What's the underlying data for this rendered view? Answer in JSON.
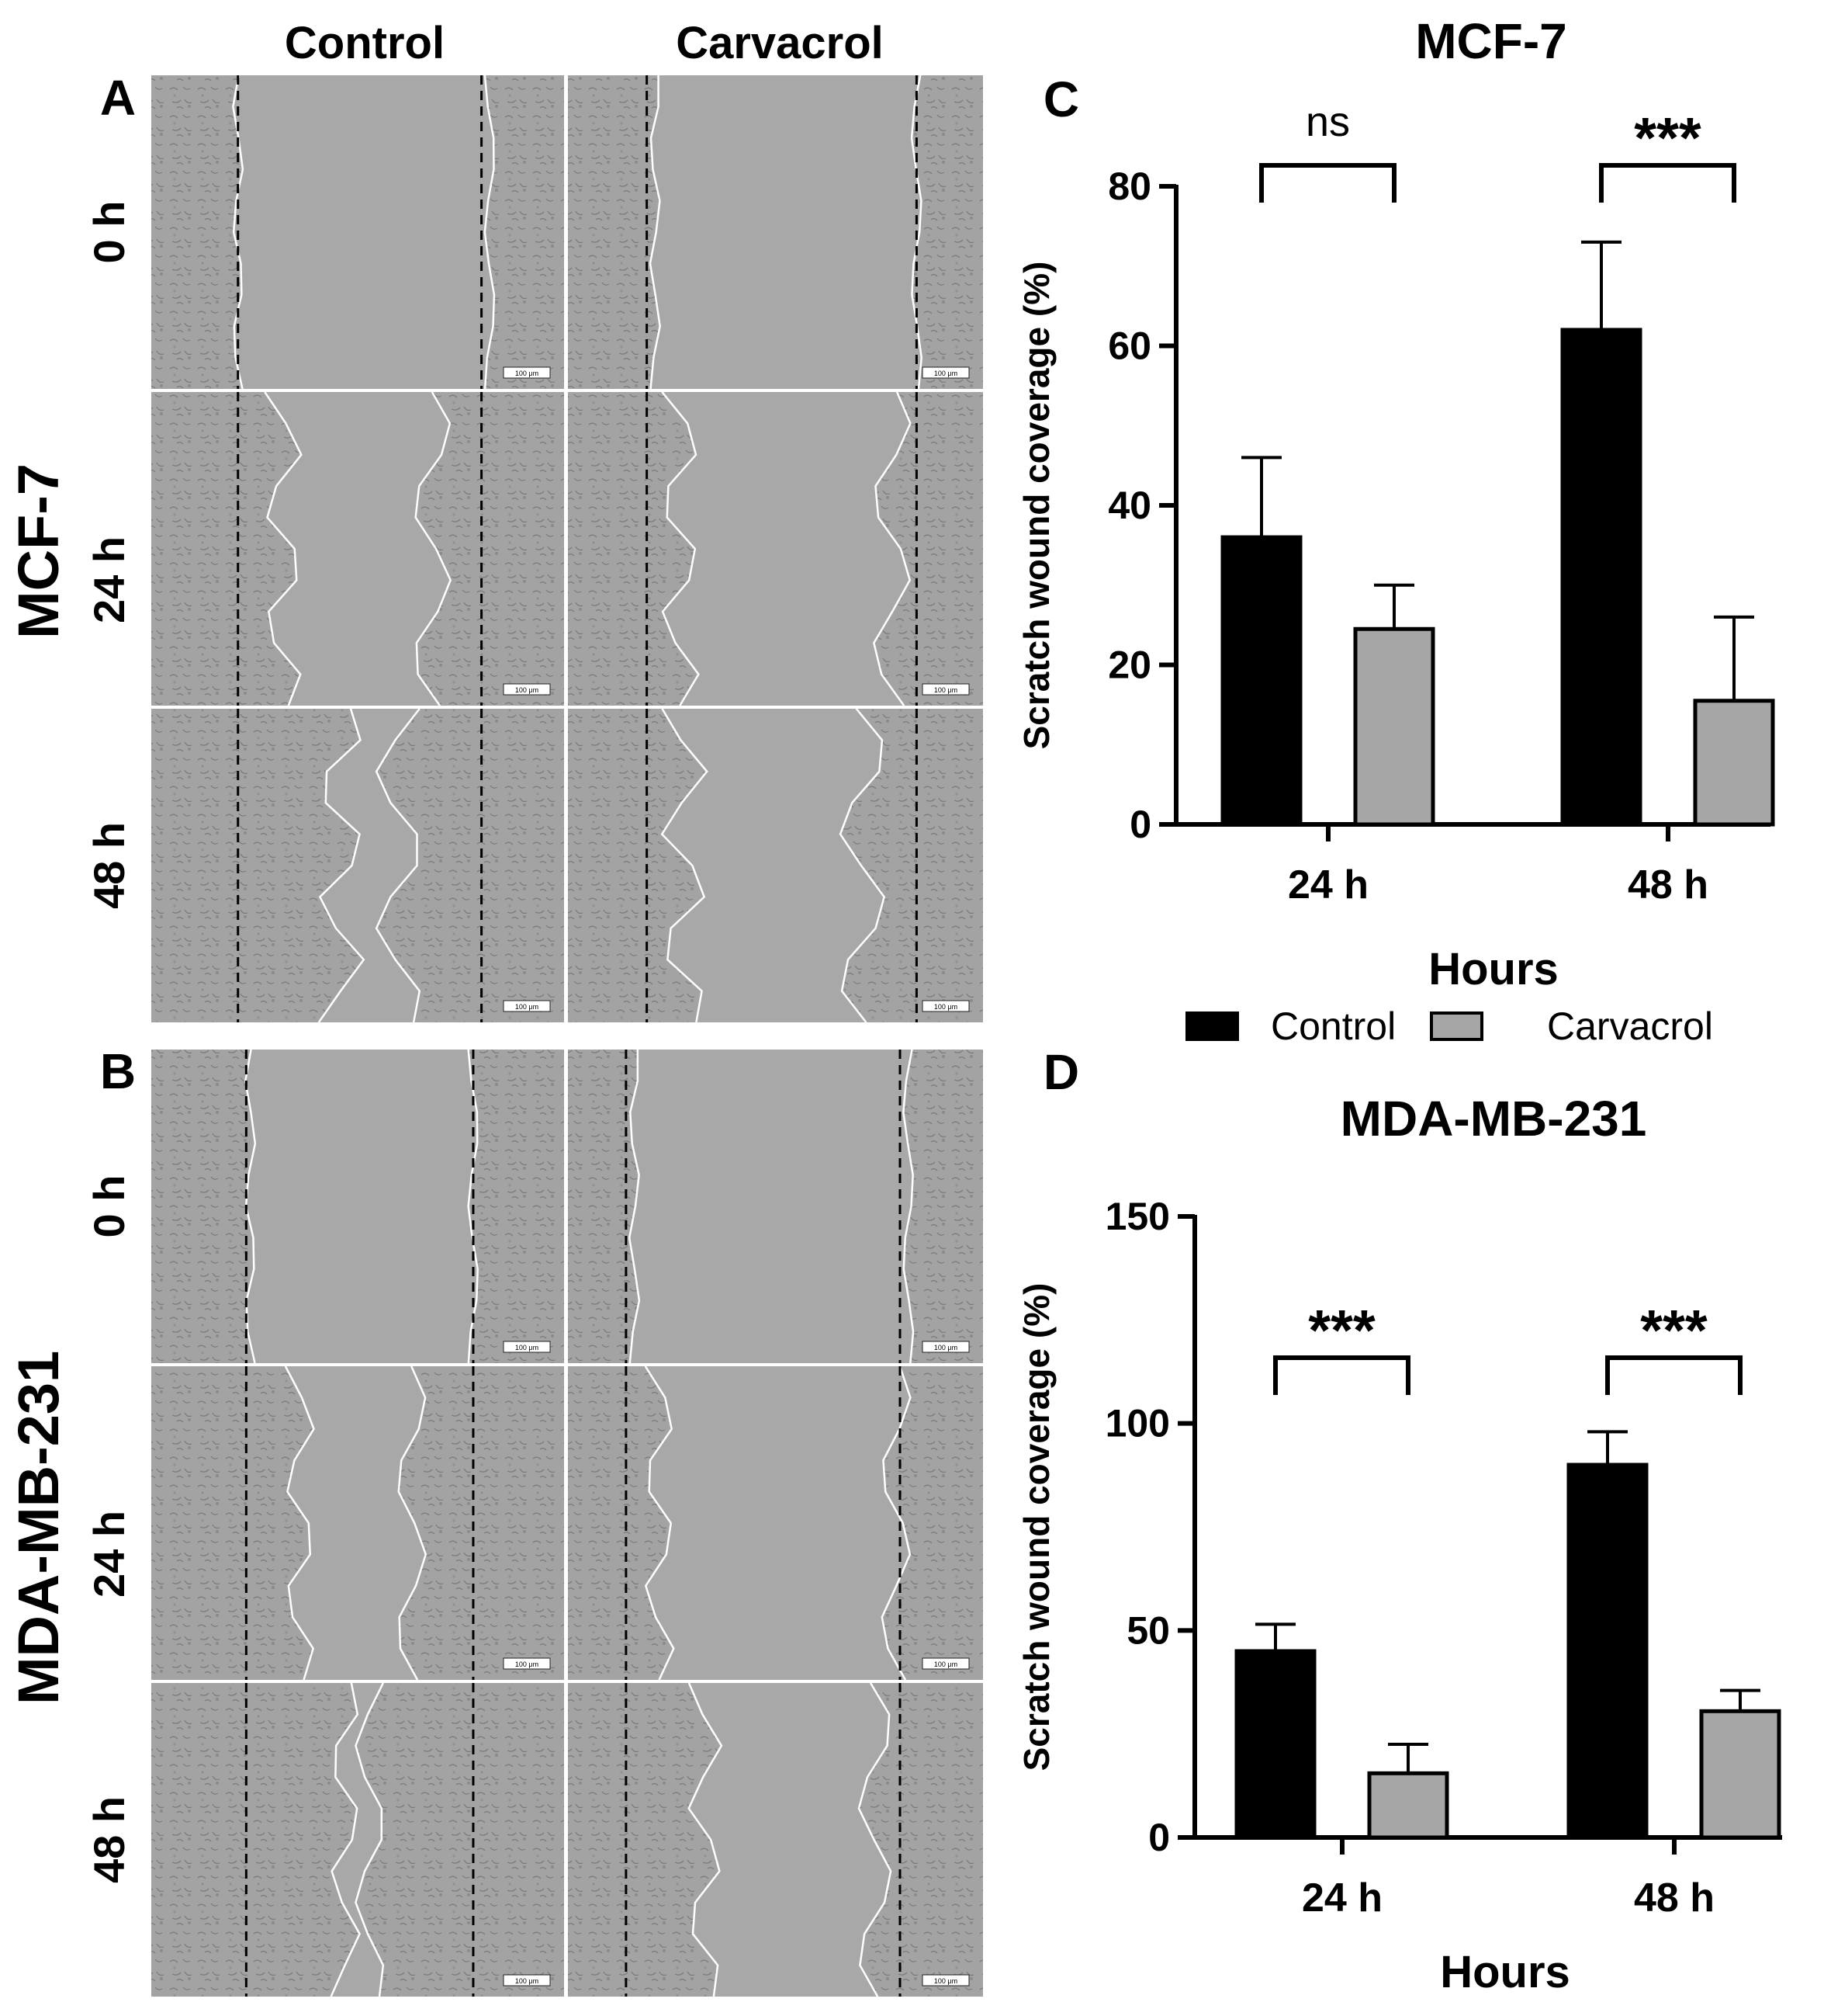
{
  "panel_letters": {
    "A": "A",
    "B": "B",
    "C": "C",
    "D": "D"
  },
  "column_headers": [
    "Control",
    "Carvacrol"
  ],
  "row_group_labels": {
    "top": "MCF-7",
    "bottom": "MDA-MB-231"
  },
  "time_labels": [
    "0 h",
    "24 h",
    "48 h"
  ],
  "scale_bar_label": "100 μm",
  "legend": {
    "items": [
      {
        "label": "Control",
        "color": "#000000"
      },
      {
        "label": "Carvacrol",
        "color": "#a6a6a6"
      }
    ],
    "placement": "between-charts"
  },
  "colors": {
    "control": "#000000",
    "carvacrol": "#a6a6a6",
    "micrograph": "#a3a3a3",
    "wound_edge": "#ffffff"
  },
  "chart_data": [
    {
      "panel": "C",
      "type": "bar",
      "title": "MCF-7",
      "xlabel": "Hours",
      "ylabel": "Scratch wound coverage (%)",
      "categories": [
        "24 h",
        "48 h"
      ],
      "ylim": [
        0,
        80
      ],
      "yticks": [
        "0",
        "20",
        "40",
        "60",
        "80"
      ],
      "series": [
        {
          "name": "Control",
          "values": [
            36,
            62
          ],
          "errors": [
            10,
            11
          ]
        },
        {
          "name": "Carvacrol",
          "values": [
            24.5,
            15.5
          ],
          "errors": [
            5.5,
            10.5
          ]
        }
      ],
      "significance": [
        "ns",
        "***"
      ]
    },
    {
      "panel": "D",
      "type": "bar",
      "title": "MDA-MB-231",
      "xlabel": "Hours",
      "ylabel": "Scratch wound coverage (%)",
      "categories": [
        "24 h",
        "48 h"
      ],
      "ylim": [
        0,
        150
      ],
      "yticks": [
        "0",
        "50",
        "100",
        "150"
      ],
      "series": [
        {
          "name": "Control",
          "values": [
            45,
            90
          ],
          "errors": [
            6.5,
            8
          ]
        },
        {
          "name": "Carvacrol",
          "values": [
            15.5,
            30.5
          ],
          "errors": [
            7,
            5
          ]
        }
      ],
      "significance": [
        "***",
        "***"
      ]
    }
  ]
}
